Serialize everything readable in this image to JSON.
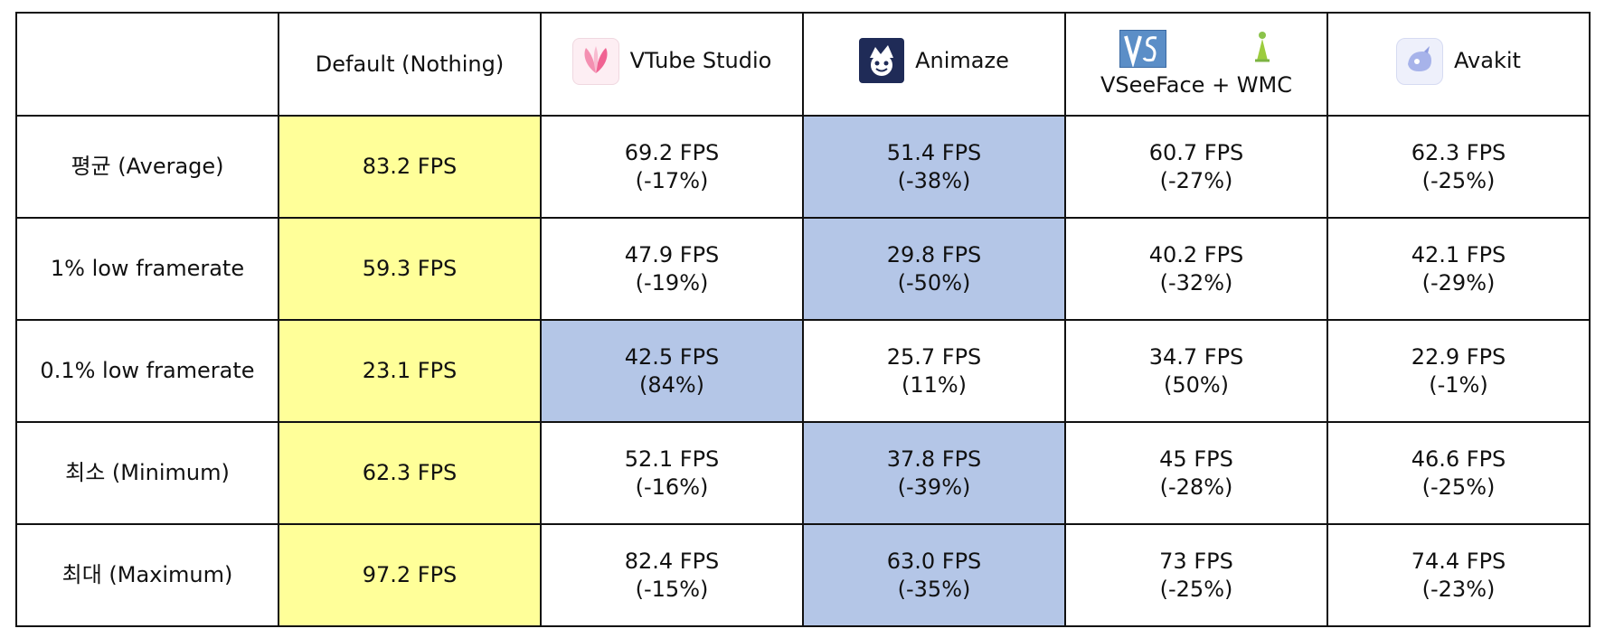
{
  "header": {
    "corner": "",
    "columns": [
      {
        "label": "Default (Nothing)",
        "icon": ""
      },
      {
        "label": "VTube Studio",
        "icon": "vtube-studio-logo-icon"
      },
      {
        "label": "Animaze",
        "icon": "animaze-logo-icon"
      },
      {
        "label": "VSeeFace + WMC",
        "icon": "vseeface-wmc-logo-icon"
      },
      {
        "label": "Avakit",
        "icon": "avakit-logo-icon"
      }
    ]
  },
  "rows": [
    {
      "label": "평균 (Average)",
      "cells": [
        {
          "fps": "83.2 FPS",
          "pct": "",
          "highlight": "yellow"
        },
        {
          "fps": "69.2 FPS",
          "pct": "(-17%)",
          "highlight": ""
        },
        {
          "fps": "51.4 FPS",
          "pct": "(-38%)",
          "highlight": "blue"
        },
        {
          "fps": "60.7 FPS",
          "pct": "(-27%)",
          "highlight": ""
        },
        {
          "fps": "62.3 FPS",
          "pct": "(-25%)",
          "highlight": ""
        }
      ]
    },
    {
      "label": "1% low framerate",
      "cells": [
        {
          "fps": "59.3 FPS",
          "pct": "",
          "highlight": "yellow"
        },
        {
          "fps": "47.9 FPS",
          "pct": "(-19%)",
          "highlight": ""
        },
        {
          "fps": "29.8 FPS",
          "pct": "(-50%)",
          "highlight": "blue"
        },
        {
          "fps": "40.2 FPS",
          "pct": "(-32%)",
          "highlight": ""
        },
        {
          "fps": "42.1 FPS",
          "pct": "(-29%)",
          "highlight": ""
        }
      ]
    },
    {
      "label": "0.1% low framerate",
      "cells": [
        {
          "fps": "23.1 FPS",
          "pct": "",
          "highlight": "yellow"
        },
        {
          "fps": "42.5 FPS",
          "pct": "(84%)",
          "highlight": "blue"
        },
        {
          "fps": "25.7 FPS",
          "pct": "(11%)",
          "highlight": ""
        },
        {
          "fps": "34.7 FPS",
          "pct": "(50%)",
          "highlight": ""
        },
        {
          "fps": "22.9 FPS",
          "pct": "(-1%)",
          "highlight": ""
        }
      ]
    },
    {
      "label": "최소 (Minimum)",
      "cells": [
        {
          "fps": "62.3 FPS",
          "pct": "",
          "highlight": "yellow"
        },
        {
          "fps": "52.1 FPS",
          "pct": "(-16%)",
          "highlight": ""
        },
        {
          "fps": "37.8 FPS",
          "pct": "(-39%)",
          "highlight": "blue"
        },
        {
          "fps": "45 FPS",
          "pct": "(-28%)",
          "highlight": ""
        },
        {
          "fps": "46.6 FPS",
          "pct": "(-25%)",
          "highlight": ""
        }
      ]
    },
    {
      "label": "최대 (Maximum)",
      "cells": [
        {
          "fps": "97.2 FPS",
          "pct": "",
          "highlight": "yellow"
        },
        {
          "fps": "82.4 FPS",
          "pct": "(-15%)",
          "highlight": ""
        },
        {
          "fps": "63.0 FPS",
          "pct": "(-35%)",
          "highlight": "blue"
        },
        {
          "fps": "73 FPS",
          "pct": "(-25%)",
          "highlight": ""
        },
        {
          "fps": "74.4 FPS",
          "pct": "(-23%)",
          "highlight": ""
        }
      ]
    }
  ],
  "colors": {
    "highlight_yellow": "#ffff99",
    "highlight_blue": "#b4c6e7",
    "border": "#111111"
  }
}
